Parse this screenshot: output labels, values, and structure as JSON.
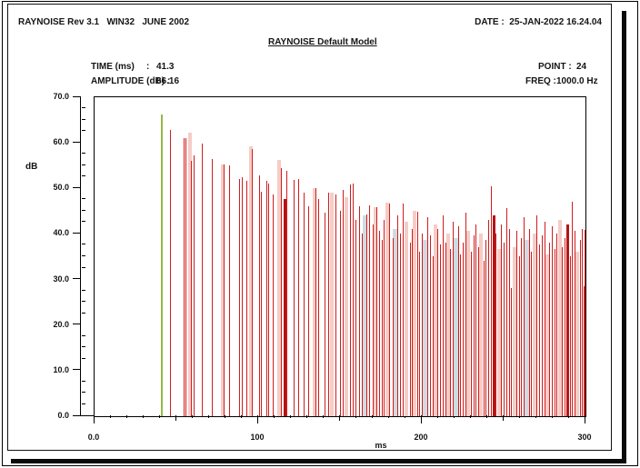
{
  "header": {
    "left": "RAYNOISE Rev 3.1   WIN32   JUNE 2002",
    "date": "DATE :  25-JAN-2022 16.24.04",
    "title": "RAYNOISE Default Model"
  },
  "readout": {
    "time_label": "TIME (ms)",
    "time_sep": ":",
    "time_value": "41.3",
    "amplitude_label": "AMPLITUDE (dB) :",
    "amplitude_value": "66.16",
    "point_label": "POINT :",
    "point_value": "24",
    "freq_label": "FREQ : ",
    "freq_value": "1000.0 Hz"
  },
  "chart_data": {
    "type": "bar",
    "variant": "impulse-response-echogram",
    "title": "RAYNOISE Default Model",
    "xlabel": "ms",
    "ylabel": "dB",
    "xlim": [
      0,
      300
    ],
    "ylim": [
      0,
      70
    ],
    "grid": false,
    "legend": null,
    "x_major_ticks": [
      {
        "value": 0,
        "label": "0.0"
      },
      {
        "value": 100,
        "label": "100"
      },
      {
        "value": 200,
        "label": "200"
      },
      {
        "value": 300,
        "label": "300"
      }
    ],
    "x_mid_tick_step": 50,
    "x_minor_tick_step": 10,
    "y_major_ticks": [
      {
        "value": 70,
        "label": "70.0"
      },
      {
        "value": 60,
        "label": "60.0"
      },
      {
        "value": 50,
        "label": "50.0"
      },
      {
        "value": 40,
        "label": "40.0"
      },
      {
        "value": 30,
        "label": "30.0"
      },
      {
        "value": 20,
        "label": "20.0"
      },
      {
        "value": 10,
        "label": "10.0"
      },
      {
        "value": 0,
        "label": "0.0"
      }
    ],
    "y_minor_tick_step": 2.5,
    "cursor_readout": {
      "time_ms": 41.3,
      "amplitude_db": 66.16,
      "point": 24,
      "freq_hz": 1000.0
    },
    "colors": {
      "direct": "#96b845",
      "reflection": "#cf1d1d",
      "reflection_strong": "#b51414",
      "faint": "#f5cdc6",
      "band": "#cfdae2"
    },
    "bar_kinds": {
      "g": "direct",
      "r": "reflection",
      "R": "reflection_strong",
      "f": "faint",
      "b": "band"
    },
    "bars": [
      [
        41.3,
        66.2,
        "g"
      ],
      [
        46.3,
        62.9,
        "r"
      ],
      [
        54.6,
        61.0,
        "r"
      ],
      [
        55.9,
        61.1,
        "r"
      ],
      [
        58.2,
        62.3,
        "f"
      ],
      [
        58.9,
        56.0,
        "r"
      ],
      [
        61.0,
        57.2,
        "r"
      ],
      [
        65.8,
        59.9,
        "r"
      ],
      [
        71.8,
        56.4,
        "r"
      ],
      [
        78.1,
        55.2,
        "f"
      ],
      [
        78.9,
        55.3,
        "r"
      ],
      [
        82.6,
        55.0,
        "r"
      ],
      [
        88.8,
        52.1,
        "r"
      ],
      [
        90.1,
        52.5,
        "r"
      ],
      [
        93.2,
        51.6,
        "r"
      ],
      [
        95.7,
        59.2,
        "f"
      ],
      [
        96.5,
        58.6,
        "r"
      ],
      [
        100.8,
        52.9,
        "r"
      ],
      [
        102.1,
        49.2,
        "r"
      ],
      [
        105.2,
        51.6,
        "r"
      ],
      [
        106.4,
        51.1,
        "r"
      ],
      [
        109.4,
        48.6,
        "r"
      ],
      [
        112.7,
        56.3,
        "f"
      ],
      [
        113.9,
        54.4,
        "r"
      ],
      [
        116.3,
        47.6,
        "R"
      ],
      [
        117.3,
        53.9,
        "r"
      ],
      [
        121.8,
        51.9,
        "r"
      ],
      [
        124.6,
        52.1,
        "r"
      ],
      [
        127.8,
        49.1,
        "r"
      ],
      [
        130.7,
        46.1,
        "r"
      ],
      [
        134.5,
        50.1,
        "f"
      ],
      [
        135.3,
        50.0,
        "r"
      ],
      [
        137.2,
        47.6,
        "r"
      ],
      [
        140.9,
        44.6,
        "r"
      ],
      [
        143.3,
        49.0,
        "r"
      ],
      [
        144.9,
        49.1,
        "f"
      ],
      [
        147.6,
        48.6,
        "r"
      ],
      [
        150.3,
        45.1,
        "r"
      ],
      [
        151.9,
        49.6,
        "r"
      ],
      [
        153.9,
        48.1,
        "f"
      ],
      [
        156.2,
        50.9,
        "r"
      ],
      [
        157.8,
        51.0,
        "r"
      ],
      [
        159.6,
        43.1,
        "r"
      ],
      [
        161.7,
        46.1,
        "r"
      ],
      [
        163.4,
        40.1,
        "r"
      ],
      [
        165.5,
        44.1,
        "b"
      ],
      [
        166.4,
        44.2,
        "r"
      ],
      [
        168.1,
        46.3,
        "r"
      ],
      [
        170.0,
        42.1,
        "r"
      ],
      [
        171.6,
        45.9,
        "f"
      ],
      [
        172.4,
        45.8,
        "r"
      ],
      [
        174.3,
        40.6,
        "r"
      ],
      [
        175.6,
        38.6,
        "r"
      ],
      [
        177.2,
        43.1,
        "r"
      ],
      [
        178.8,
        46.9,
        "f"
      ],
      [
        180.2,
        46.6,
        "r"
      ],
      [
        182.3,
        39.1,
        "r"
      ],
      [
        183.7,
        41.1,
        "b"
      ],
      [
        185.4,
        44.1,
        "r"
      ],
      [
        186.8,
        40.1,
        "r"
      ],
      [
        188.8,
        46.6,
        "r"
      ],
      [
        190.7,
        42.6,
        "f"
      ],
      [
        192.8,
        38.1,
        "r"
      ],
      [
        194.2,
        41.1,
        "r"
      ],
      [
        195.8,
        45.1,
        "f"
      ],
      [
        197.4,
        44.9,
        "r"
      ],
      [
        198.7,
        36.1,
        "r"
      ],
      [
        200.5,
        40.1,
        "r"
      ],
      [
        201.8,
        38.6,
        "b"
      ],
      [
        203.7,
        43.6,
        "r"
      ],
      [
        205.1,
        39.6,
        "r"
      ],
      [
        206.9,
        35.1,
        "r"
      ],
      [
        208.2,
        42.1,
        "f"
      ],
      [
        209.8,
        41.1,
        "r"
      ],
      [
        211.3,
        37.6,
        "r"
      ],
      [
        213.0,
        44.1,
        "r"
      ],
      [
        214.5,
        38.1,
        "r"
      ],
      [
        216.2,
        40.1,
        "f"
      ],
      [
        217.6,
        36.6,
        "r"
      ],
      [
        219.3,
        42.6,
        "r"
      ],
      [
        220.7,
        39.1,
        "b"
      ],
      [
        222.4,
        41.6,
        "r"
      ],
      [
        223.8,
        35.6,
        "r"
      ],
      [
        225.5,
        38.1,
        "r"
      ],
      [
        226.9,
        44.6,
        "r"
      ],
      [
        228.6,
        40.6,
        "f"
      ],
      [
        230.0,
        36.1,
        "r"
      ],
      [
        231.7,
        39.6,
        "r"
      ],
      [
        233.1,
        42.1,
        "r"
      ],
      [
        234.8,
        37.1,
        "r"
      ],
      [
        236.2,
        40.1,
        "f"
      ],
      [
        237.9,
        34.1,
        "r"
      ],
      [
        239.3,
        38.6,
        "r"
      ],
      [
        241.0,
        43.1,
        "r"
      ],
      [
        242.4,
        50.4,
        "r"
      ],
      [
        244.1,
        44.1,
        "R"
      ],
      [
        245.5,
        40.1,
        "r"
      ],
      [
        247.2,
        36.6,
        "f"
      ],
      [
        248.6,
        42.1,
        "r"
      ],
      [
        250.3,
        38.1,
        "r"
      ],
      [
        251.7,
        45.6,
        "r"
      ],
      [
        253.4,
        41.1,
        "r"
      ],
      [
        254.8,
        28.1,
        "r"
      ],
      [
        256.5,
        37.1,
        "f"
      ],
      [
        257.9,
        40.6,
        "r"
      ],
      [
        259.6,
        35.1,
        "r"
      ],
      [
        261.0,
        39.1,
        "r"
      ],
      [
        262.7,
        43.6,
        "r"
      ],
      [
        264.1,
        38.6,
        "b"
      ],
      [
        265.8,
        41.1,
        "r"
      ],
      [
        267.2,
        36.1,
        "r"
      ],
      [
        268.9,
        40.1,
        "f"
      ],
      [
        270.3,
        44.1,
        "r"
      ],
      [
        272.0,
        37.6,
        "r"
      ],
      [
        273.4,
        39.6,
        "r"
      ],
      [
        275.1,
        42.6,
        "r"
      ],
      [
        276.5,
        35.6,
        "f"
      ],
      [
        278.2,
        38.1,
        "r"
      ],
      [
        279.6,
        41.6,
        "r"
      ],
      [
        281.3,
        36.6,
        "r"
      ],
      [
        282.7,
        40.1,
        "r"
      ],
      [
        284.4,
        43.1,
        "f"
      ],
      [
        285.8,
        37.1,
        "r"
      ],
      [
        287.5,
        39.1,
        "r"
      ],
      [
        288.9,
        42.1,
        "R"
      ],
      [
        290.6,
        35.1,
        "r"
      ],
      [
        292.0,
        47.1,
        "r"
      ],
      [
        293.7,
        40.6,
        "r"
      ],
      [
        295.1,
        36.1,
        "f"
      ],
      [
        296.8,
        38.6,
        "r"
      ],
      [
        298.2,
        41.1,
        "r"
      ],
      [
        299.3,
        28.6,
        "r"
      ],
      [
        299.8,
        40.9,
        "r"
      ]
    ]
  }
}
